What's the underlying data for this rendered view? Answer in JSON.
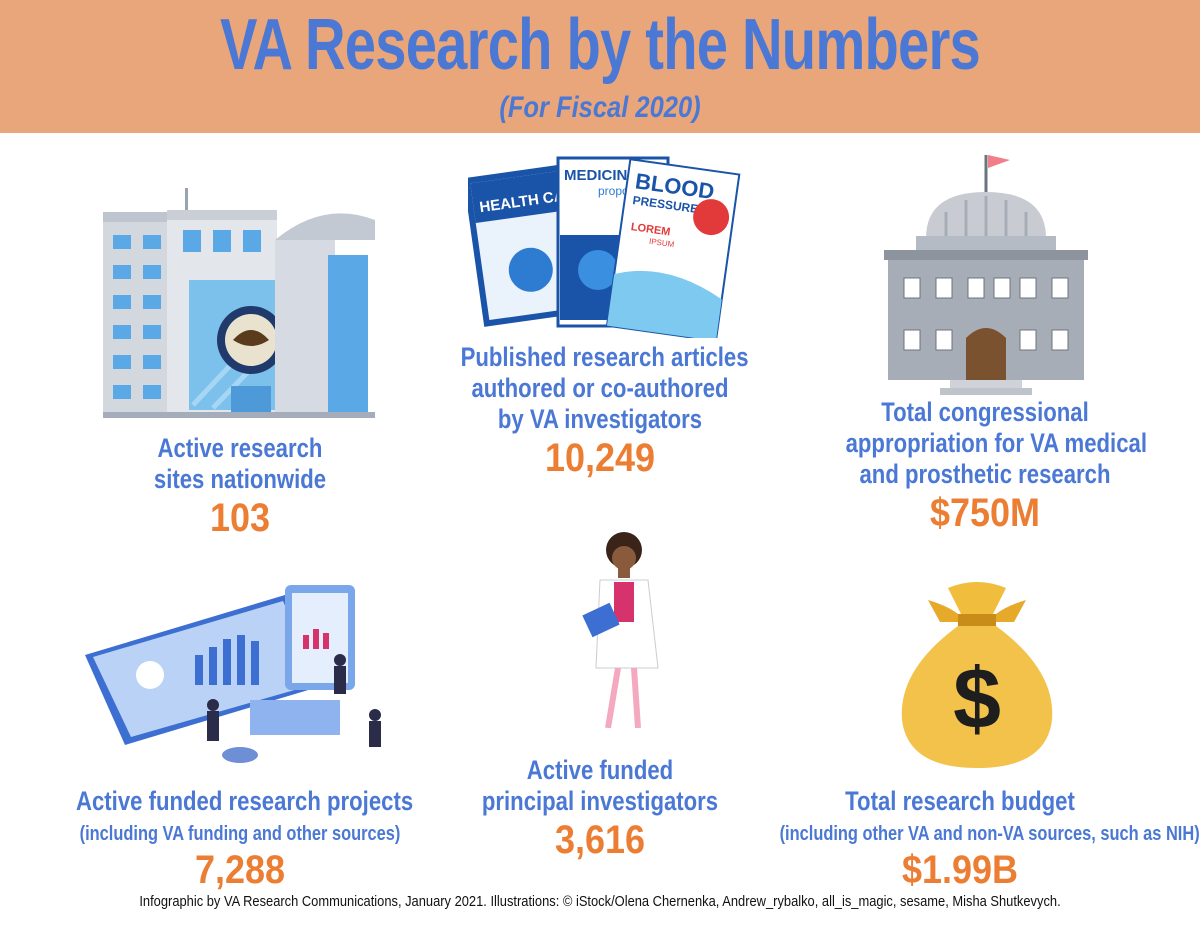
{
  "header": {
    "title": "VA Research by the Numbers",
    "subtitle": "(For Fiscal 2020)"
  },
  "stats": [
    {
      "id": "sites",
      "label_lines": [
        "Active research",
        "sites nationwide"
      ],
      "value": "103",
      "icon": "building-icon"
    },
    {
      "id": "articles",
      "label_lines": [
        "Published research articles",
        "authored or co-authored",
        "by VA investigators"
      ],
      "value": "10,249",
      "icon": "journals-icon",
      "journal_texts": [
        "HEALTH CARE",
        "MEDICINE",
        "propo",
        "BLOOD",
        "PRESSURE",
        "LOREM",
        "IPSUM"
      ]
    },
    {
      "id": "appropriation",
      "label_lines": [
        "Total congressional",
        "appropriation for VA medical",
        "and prosthetic research"
      ],
      "value": "$750M",
      "icon": "capitol-building-icon"
    },
    {
      "id": "projects",
      "label_lines": [
        "Active funded research projects"
      ],
      "note": "(including VA funding and other sources)",
      "value": "7,288",
      "icon": "dashboard-team-icon"
    },
    {
      "id": "investigators",
      "label_lines": [
        "Active funded",
        "principal investigators"
      ],
      "value": "3,616",
      "icon": "doctor-icon"
    },
    {
      "id": "budget",
      "label_lines": [
        "Total research budget"
      ],
      "note": "(including other VA and non-VA sources, such as NIH)",
      "value": "$1.99B",
      "icon": "money-bag-icon",
      "bag_symbol": "$"
    }
  ],
  "footer": {
    "credit": "Infographic by VA Research Communications, January 2021. Illustrations: © iStock/Olena Chernenka, Andrew_rybalko, all_is_magic, sesame,  Misha Shutkevych."
  },
  "colors": {
    "banner": "#e9a67a",
    "title": "#4a78d4",
    "label": "#4a78d4",
    "value": "#ec7e34"
  }
}
